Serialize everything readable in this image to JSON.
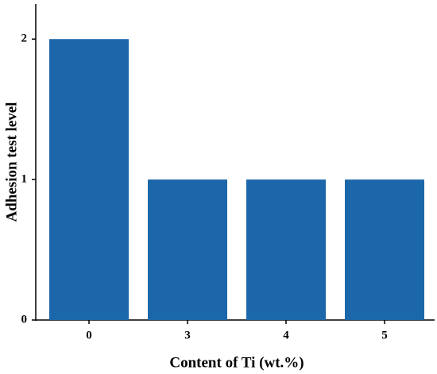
{
  "chart_data": {
    "type": "bar",
    "x_label": "Content of Ti (wt.%)",
    "y_label": "Adhesion test level",
    "categories": [
      "0",
      "3",
      "4",
      "5"
    ],
    "values": [
      2,
      1,
      1,
      1
    ],
    "color": "#1c67a9",
    "ylim": [
      0,
      2.25
    ],
    "yticks": [
      0,
      1,
      2
    ],
    "grid": false
  }
}
